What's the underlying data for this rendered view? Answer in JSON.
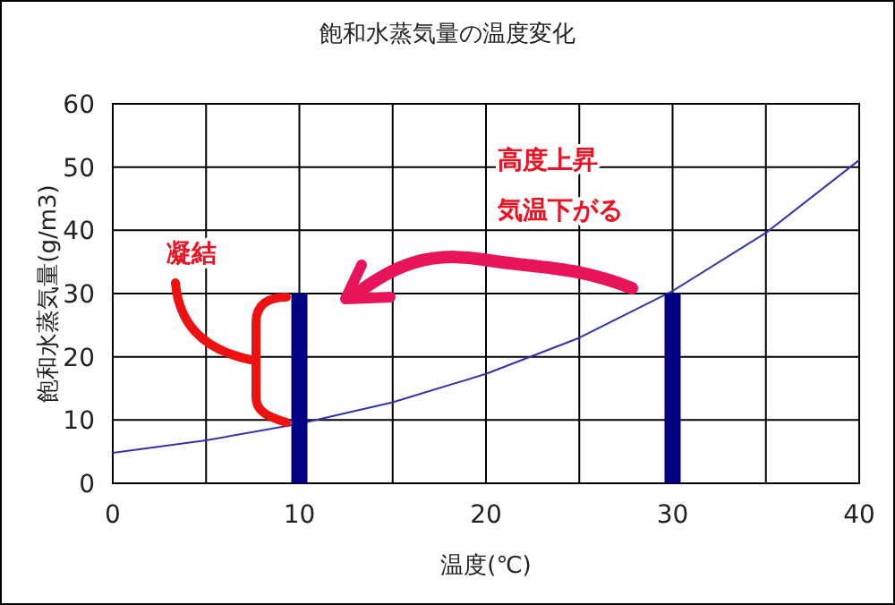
{
  "chart_data": {
    "type": "line",
    "title": "飽和水蒸気量の温度変化",
    "xlabel": "温度(℃)",
    "ylabel": "飽和水蒸気量(g/m3)",
    "series": [
      {
        "color": "#3333aa",
        "x": [
          0,
          5,
          10,
          15,
          20,
          25,
          30,
          35,
          40
        ],
        "values": [
          4.8,
          6.8,
          9.4,
          12.8,
          17.3,
          23.0,
          30.4,
          39.6,
          51.1
        ]
      },
      {
        "type": "bar",
        "color": "#000080",
        "x": [
          10,
          30
        ],
        "values": [
          30,
          30
        ]
      }
    ],
    "xlim": [
      0,
      40
    ],
    "ylim": [
      0,
      60
    ],
    "xticks": [
      0,
      {
        "value": 5,
        "label": null
      },
      10,
      {
        "value": 15,
        "label": null
      },
      20,
      {
        "value": 25,
        "label": null
      },
      30,
      {
        "value": 35,
        "label": null
      },
      40
    ],
    "yticks": [
      0,
      10,
      20,
      30,
      40,
      50,
      60
    ],
    "grid": true,
    "annotations": [
      "凝結",
      "高度上昇",
      "気温下がる"
    ]
  }
}
